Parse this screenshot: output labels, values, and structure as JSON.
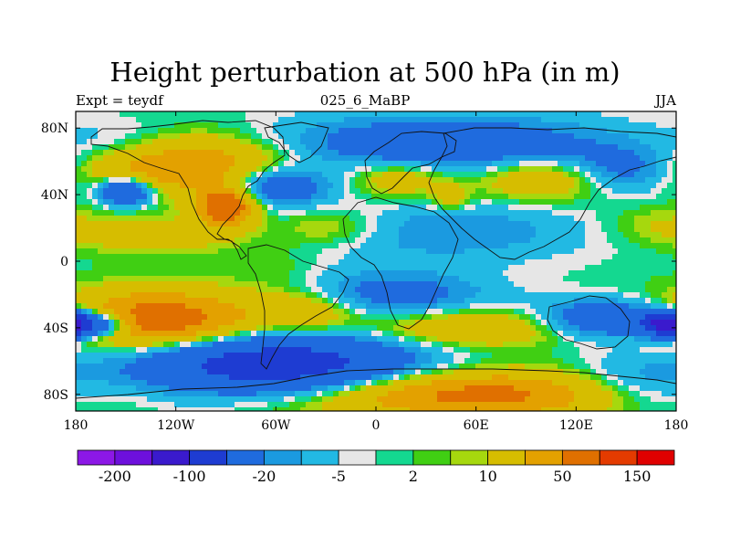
{
  "chart_data": {
    "type": "heatmap",
    "title": "Height perturbation at 500 hPa (in m)",
    "left_subtitle": "Expt = teydf",
    "center_subtitle": "025_6_MaBP",
    "right_subtitle": "JJA",
    "x_tick_labels": [
      "180",
      "120W",
      "60W",
      "0",
      "60E",
      "120E",
      "180"
    ],
    "y_tick_labels": [
      "80N",
      "40N",
      "0",
      "40S",
      "80S"
    ],
    "x_ticks": [
      -180,
      -120,
      -60,
      0,
      60,
      120,
      180
    ],
    "y_ticks": [
      80,
      40,
      0,
      -40,
      -80
    ],
    "xlim": [
      -180,
      180
    ],
    "ylim": [
      -90,
      90
    ],
    "colorbar": {
      "levels": [
        -200,
        -100,
        -20,
        -5,
        2,
        10,
        50,
        150
      ],
      "labels": [
        "-200",
        "-100",
        "-20",
        "-5",
        "2",
        "10",
        "50",
        "150"
      ],
      "colors": [
        "#8c18e6",
        "#6d10dc",
        "#3a1acd",
        "#1e3cd2",
        "#1f6bde",
        "#1b9ae0",
        "#22b9e3",
        "#e6e6e6",
        "#14d890",
        "#40cf13",
        "#a6d80e",
        "#d6bd00",
        "#e3a100",
        "#e07000",
        "#e43b00",
        "#e00000"
      ]
    },
    "features": [
      {
        "lon": -120,
        "lat": 58,
        "rx": 45,
        "ry": 12,
        "v": 55
      },
      {
        "lon": -90,
        "lat": 33,
        "rx": 12,
        "ry": 8,
        "v": 80
      },
      {
        "lon": -150,
        "lat": 42,
        "rx": 12,
        "ry": 6,
        "v": -60
      },
      {
        "lon": -60,
        "lat": 45,
        "rx": 22,
        "ry": 8,
        "v": -45
      },
      {
        "lon": 15,
        "lat": 50,
        "rx": 20,
        "ry": 8,
        "v": 25
      },
      {
        "lon": 45,
        "lat": 38,
        "rx": 8,
        "ry": 6,
        "v": 18
      },
      {
        "lon": 100,
        "lat": 50,
        "rx": 28,
        "ry": 9,
        "v": 30
      },
      {
        "lon": 40,
        "lat": 70,
        "rx": 70,
        "ry": 12,
        "v": -40
      },
      {
        "lon": 150,
        "lat": 55,
        "rx": 25,
        "ry": 10,
        "v": -30
      },
      {
        "lon": -150,
        "lat": 68,
        "rx": 25,
        "ry": 10,
        "v": -20
      },
      {
        "lon": -25,
        "lat": 20,
        "rx": 25,
        "ry": 8,
        "v": 18
      },
      {
        "lon": -130,
        "lat": 15,
        "rx": 35,
        "ry": 8,
        "v": 18
      },
      {
        "lon": -60,
        "lat": -5,
        "rx": 20,
        "ry": 10,
        "v": 6
      },
      {
        "lon": 170,
        "lat": 22,
        "rx": 25,
        "ry": 8,
        "v": 10
      },
      {
        "lon": 40,
        "lat": 18,
        "rx": 60,
        "ry": 12,
        "v": -20
      },
      {
        "lon": 10,
        "lat": -20,
        "rx": 40,
        "ry": 10,
        "v": -30
      },
      {
        "lon": -130,
        "lat": -35,
        "rx": 40,
        "ry": 12,
        "v": 70
      },
      {
        "lon": -40,
        "lat": -30,
        "rx": 22,
        "ry": 9,
        "v": 25
      },
      {
        "lon": -165,
        "lat": -38,
        "rx": 12,
        "ry": 5,
        "v": -60
      },
      {
        "lon": 60,
        "lat": -40,
        "rx": 45,
        "ry": 8,
        "v": 30
      },
      {
        "lon": 140,
        "lat": -35,
        "rx": 30,
        "ry": 8,
        "v": -50
      },
      {
        "lon": 175,
        "lat": -38,
        "rx": 10,
        "ry": 5,
        "v": -130
      },
      {
        "lon": -60,
        "lat": -62,
        "rx": 55,
        "ry": 12,
        "v": -90
      },
      {
        "lon": 60,
        "lat": -80,
        "rx": 70,
        "ry": 10,
        "v": 60
      },
      {
        "lon": 155,
        "lat": -75,
        "rx": 30,
        "ry": 12,
        "v": -25
      }
    ]
  }
}
